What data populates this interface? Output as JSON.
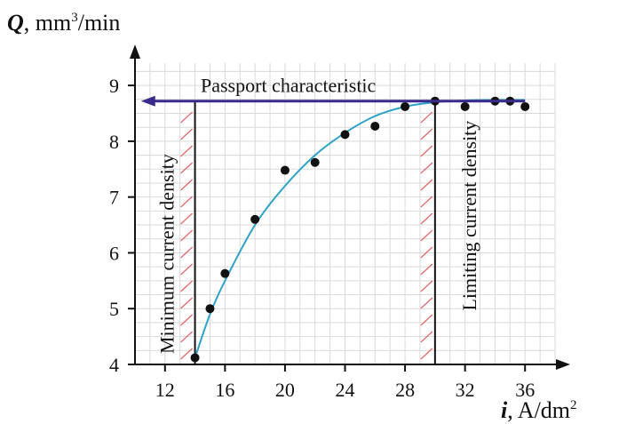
{
  "chart_data": {
    "type": "scatter",
    "ylabel": {
      "symbol": "Q",
      "unit": ", mm",
      "exp": "3",
      "rest": "/min"
    },
    "xlabel": {
      "symbol": "i",
      "unit": ", A/dm",
      "exp": "2"
    },
    "xlim": [
      10,
      38
    ],
    "ylim": [
      4,
      9.4
    ],
    "x_ticks": [
      12,
      16,
      20,
      24,
      28,
      32,
      36
    ],
    "y_ticks": [
      4,
      5,
      6,
      7,
      8,
      9
    ],
    "grid": true,
    "points": [
      {
        "x": 14,
        "y": 4.12
      },
      {
        "x": 15,
        "y": 5.0
      },
      {
        "x": 16,
        "y": 5.63
      },
      {
        "x": 18,
        "y": 6.6
      },
      {
        "x": 20,
        "y": 7.48
      },
      {
        "x": 22,
        "y": 7.62
      },
      {
        "x": 24,
        "y": 8.12
      },
      {
        "x": 26,
        "y": 8.27
      },
      {
        "x": 28,
        "y": 8.62
      },
      {
        "x": 30,
        "y": 8.72
      },
      {
        "x": 32,
        "y": 8.62
      },
      {
        "x": 34,
        "y": 8.72
      },
      {
        "x": 35,
        "y": 8.72
      },
      {
        "x": 36,
        "y": 8.62
      }
    ],
    "fit_curve": [
      {
        "x": 14,
        "y": 4.12
      },
      {
        "x": 15,
        "y": 4.9
      },
      {
        "x": 16,
        "y": 5.5
      },
      {
        "x": 18,
        "y": 6.5
      },
      {
        "x": 20,
        "y": 7.2
      },
      {
        "x": 22,
        "y": 7.75
      },
      {
        "x": 24,
        "y": 8.15
      },
      {
        "x": 26,
        "y": 8.45
      },
      {
        "x": 28,
        "y": 8.62
      },
      {
        "x": 30,
        "y": 8.7
      },
      {
        "x": 32,
        "y": 8.73
      },
      {
        "x": 34,
        "y": 8.74
      },
      {
        "x": 36,
        "y": 8.74
      }
    ],
    "passport_line": {
      "label": "Passport characteristic",
      "y": 8.72,
      "x_from": 36,
      "x_to": 10.4
    },
    "vertical_lines": [
      {
        "x": 14,
        "label": "Minimum current density",
        "hatch_side": "left"
      },
      {
        "x": 30,
        "label": "Limiting current density",
        "hatch_side": "left"
      }
    ],
    "colors": {
      "curve": "#2ea3c8",
      "passport": "#3a2a8c",
      "hatch": "#e06666",
      "points": "#111111",
      "grid": "#d9d9d9"
    }
  }
}
